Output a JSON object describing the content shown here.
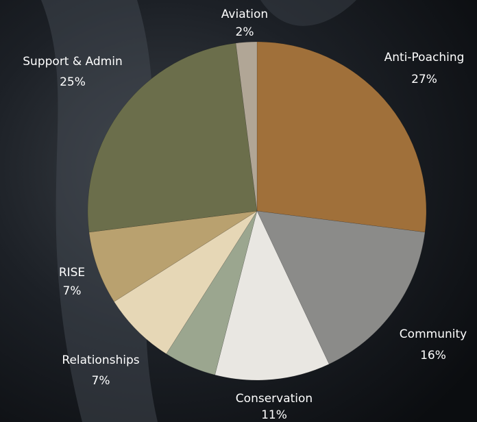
{
  "chart_data": {
    "type": "pie",
    "categories": [
      "Anti-Poaching",
      "Community",
      "Conservation",
      null,
      "Relationships",
      "RISE",
      "Support & Admin",
      "Aviation"
    ],
    "values": [
      27,
      16,
      11,
      5,
      7,
      7,
      25,
      2
    ],
    "value_labels": [
      "27%",
      "16%",
      "11%",
      null,
      "7%",
      "7%",
      "25%",
      "2%"
    ],
    "colors": [
      "#a0703a",
      "#8b8b89",
      "#e9e7e2",
      "#9ba68f",
      "#e6d7b6",
      "#b9a16f",
      "#6b6e4b",
      "#b1a696"
    ]
  }
}
